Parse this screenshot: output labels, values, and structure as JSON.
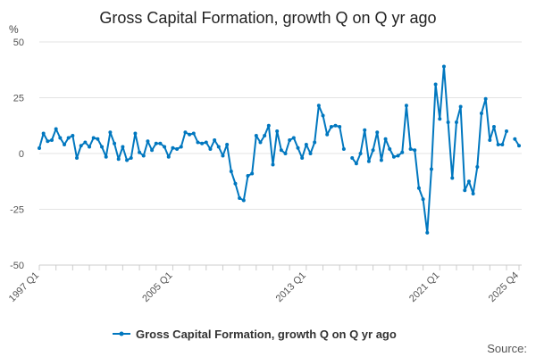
{
  "chart_data": {
    "type": "line",
    "title": "Gross Capital Formation, growth Q on Q yr ago",
    "ylabel": "%",
    "xlabel": "",
    "ylim": [
      -50,
      50
    ],
    "yticks": [
      50,
      25,
      0,
      -25,
      -50
    ],
    "ytick_labels": [
      "50",
      "25",
      "0",
      "-25",
      "-50"
    ],
    "xtick_labels": [
      {
        "label": "1997 Q1",
        "index": 0
      },
      {
        "label": "2005 Q1",
        "index": 32
      },
      {
        "label": "2013 Q1",
        "index": 64
      },
      {
        "label": "2021 Q1",
        "index": 96
      },
      {
        "label": "2025 Q4",
        "index": 115
      }
    ],
    "start": "1997 Q1",
    "end": "2025 Q4",
    "grid": true,
    "legend_position": "bottom",
    "series": [
      {
        "name": "Gross Capital Formation, growth Q on Q yr ago",
        "color": "#0077bf",
        "values": [
          2.4,
          9,
          5.5,
          6,
          11,
          7,
          4,
          7,
          8,
          -2,
          3.5,
          5,
          3,
          7,
          6.5,
          3,
          -1.5,
          9.5,
          4.5,
          -2.5,
          3,
          -3,
          -2,
          9,
          0.5,
          -1,
          5.5,
          1.5,
          4.5,
          4.5,
          3,
          -1.5,
          2.5,
          2,
          3,
          9.5,
          8.5,
          9,
          5,
          4.5,
          5,
          2,
          6,
          3,
          -1,
          4,
          -8,
          -13.5,
          -20,
          -21,
          -10,
          -9,
          8,
          5,
          8,
          12.5,
          -5,
          10,
          1.5,
          0,
          6,
          7,
          2.5,
          -2,
          4,
          0,
          5,
          21.5,
          17,
          8.5,
          12,
          12.5,
          12,
          2,
          null,
          -2,
          -4.5,
          0,
          10.5,
          -3.5,
          1.5,
          9.5,
          -3,
          6.5,
          2,
          -1.5,
          -1,
          0.5,
          21.5,
          2,
          1.5,
          -15.5,
          -20.5,
          -35.5,
          -7,
          31,
          15.5,
          39,
          14,
          -11,
          14,
          21,
          -16.5,
          -12.5,
          -18,
          -6,
          18,
          24.5,
          6,
          12,
          4,
          4,
          10,
          null,
          6.5,
          3.5
        ]
      }
    ],
    "source_label": "Source:"
  }
}
